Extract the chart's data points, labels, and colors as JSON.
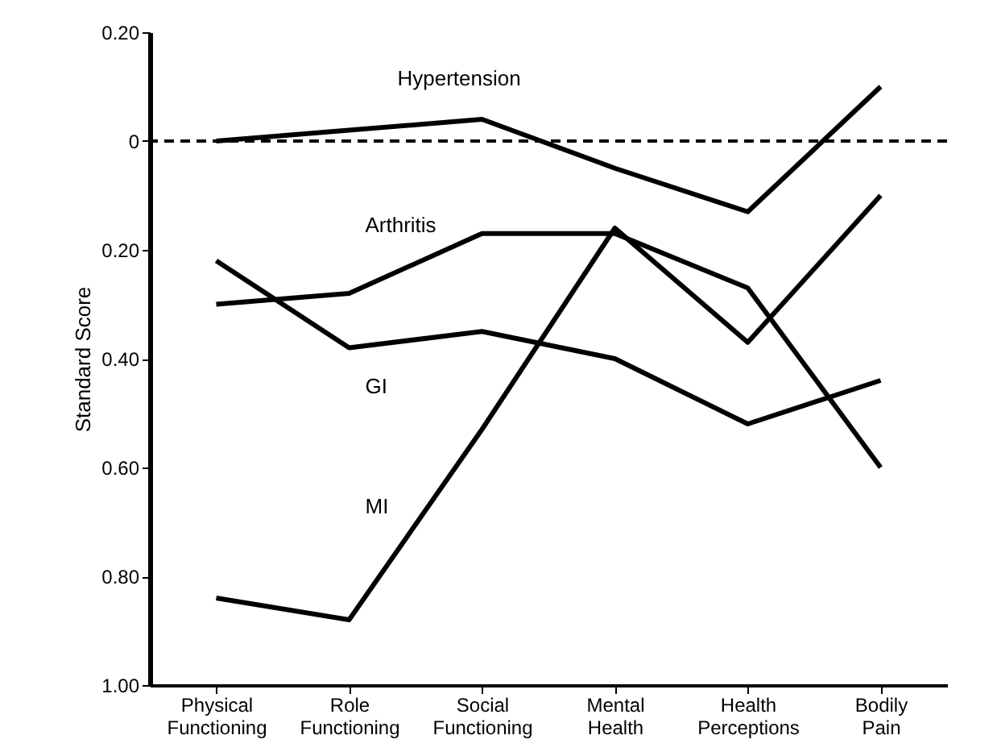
{
  "chart_data": {
    "type": "line",
    "ylabel": "Standard Score",
    "categories": [
      "Physical Functioning",
      "Role Functioning",
      "Social Functioning",
      "Mental Health",
      "Health Perceptions",
      "Bodily Pain"
    ],
    "series": [
      {
        "name": "Hypertension",
        "color": "#000000",
        "values": [
          0.0,
          0.02,
          0.04,
          -0.05,
          -0.13,
          0.1
        ]
      },
      {
        "name": "Arthritis",
        "color": "#000000",
        "values": [
          -0.3,
          -0.28,
          -0.17,
          -0.17,
          -0.27,
          -0.6
        ]
      },
      {
        "name": "GI",
        "color": "#000000",
        "values": [
          -0.22,
          -0.38,
          -0.35,
          -0.4,
          -0.52,
          -0.44
        ]
      },
      {
        "name": "MI",
        "color": "#000000",
        "values": [
          -0.84,
          -0.88,
          -0.53,
          -0.16,
          -0.37,
          -0.1
        ]
      }
    ],
    "ylim": [
      -1.0,
      0.2
    ],
    "yticks": [
      {
        "value": 0.2,
        "label": "0.20"
      },
      0,
      {
        "value": -0.2,
        "label": "0.20"
      },
      {
        "value": -0.4,
        "label": "0.40"
      },
      {
        "value": -0.6,
        "label": "0.60"
      },
      {
        "value": -0.8,
        "label": "0.80"
      },
      {
        "value": -1.0,
        "label": "1.00"
      }
    ],
    "ref_lines": [
      {
        "axis": "y",
        "value": 0,
        "line_style": "dashed",
        "color": "#000000"
      }
    ],
    "grid": false,
    "marker": "none",
    "line_style": "solid"
  }
}
